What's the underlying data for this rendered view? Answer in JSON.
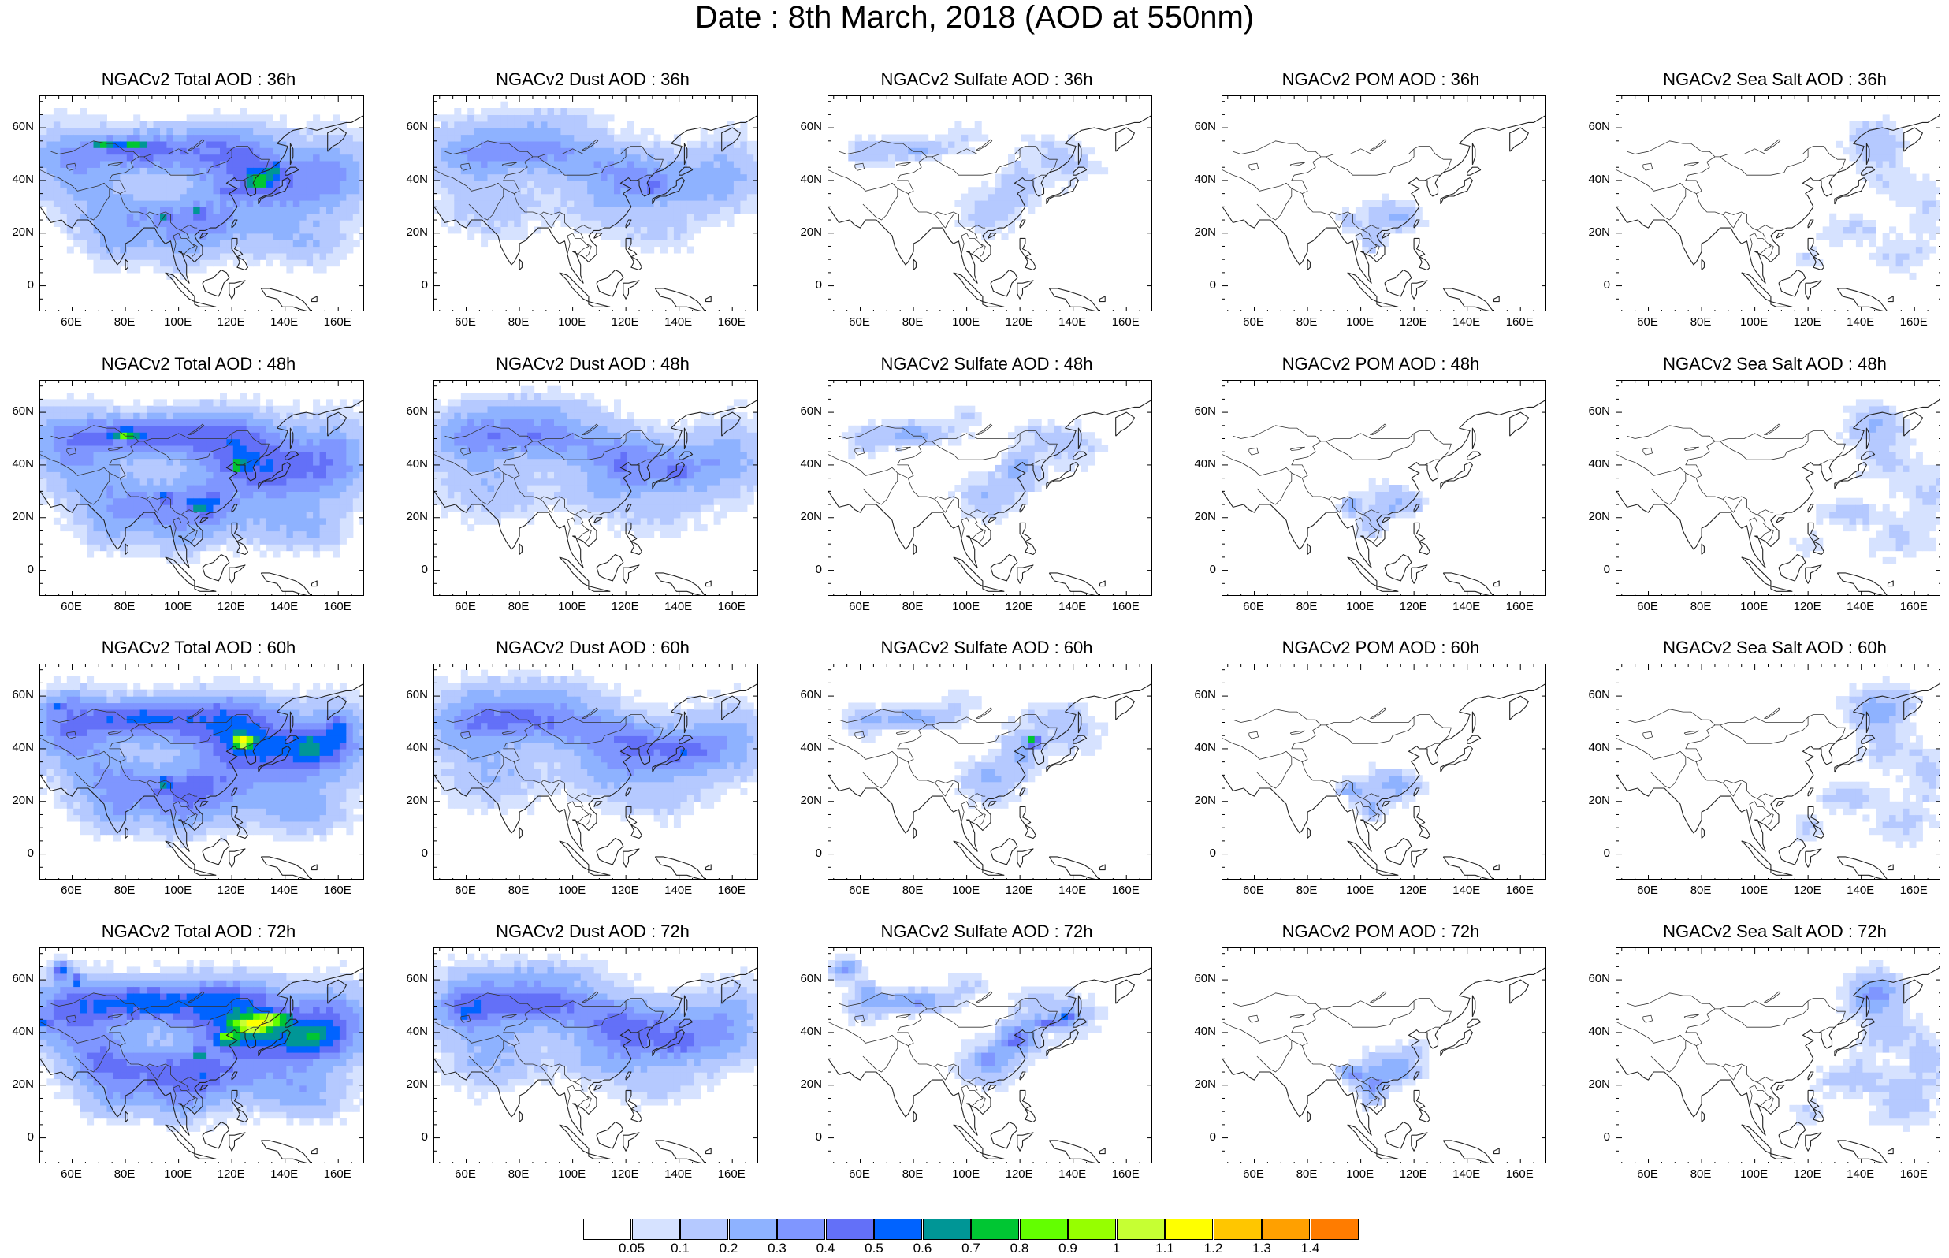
{
  "title": "Date : 8th March, 2018 (AOD at 550nm)",
  "lat_labels": [
    "60N",
    "40N",
    "20N",
    "0"
  ],
  "lon_labels": [
    "60E",
    "80E",
    "100E",
    "120E",
    "140E",
    "160E"
  ],
  "panels": [
    {
      "title": "NGACv2 Total AOD : 36h",
      "species": "total",
      "hour": 36
    },
    {
      "title": "NGACv2 Dust AOD : 36h",
      "species": "dust",
      "hour": 36
    },
    {
      "title": "NGACv2 Sulfate AOD : 36h",
      "species": "sulfate",
      "hour": 36
    },
    {
      "title": "NGACv2 POM AOD : 36h",
      "species": "pom",
      "hour": 36
    },
    {
      "title": "NGACv2 Sea Salt AOD : 36h",
      "species": "seasalt",
      "hour": 36
    },
    {
      "title": "NGACv2 Total AOD : 48h",
      "species": "total",
      "hour": 48
    },
    {
      "title": "NGACv2 Dust AOD : 48h",
      "species": "dust",
      "hour": 48
    },
    {
      "title": "NGACv2 Sulfate AOD : 48h",
      "species": "sulfate",
      "hour": 48
    },
    {
      "title": "NGACv2 POM AOD : 48h",
      "species": "pom",
      "hour": 48
    },
    {
      "title": "NGACv2 Sea Salt AOD : 48h",
      "species": "seasalt",
      "hour": 48
    },
    {
      "title": "NGACv2 Total AOD : 60h",
      "species": "total",
      "hour": 60
    },
    {
      "title": "NGACv2 Dust AOD : 60h",
      "species": "dust",
      "hour": 60
    },
    {
      "title": "NGACv2 Sulfate AOD : 60h",
      "species": "sulfate",
      "hour": 60
    },
    {
      "title": "NGACv2 POM AOD : 60h",
      "species": "pom",
      "hour": 60
    },
    {
      "title": "NGACv2 Sea Salt AOD : 60h",
      "species": "seasalt",
      "hour": 60
    },
    {
      "title": "NGACv2 Total AOD : 72h",
      "species": "total",
      "hour": 72
    },
    {
      "title": "NGACv2 Dust AOD : 72h",
      "species": "dust",
      "hour": 72
    },
    {
      "title": "NGACv2 Sulfate AOD : 72h",
      "species": "sulfate",
      "hour": 72
    },
    {
      "title": "NGACv2 POM AOD : 72h",
      "species": "pom",
      "hour": 72
    },
    {
      "title": "NGACv2 Sea Salt  AOD : 72h",
      "species": "seasalt",
      "hour": 72
    }
  ],
  "colorbar": {
    "colors": [
      "#ffffff",
      "#d6e2ff",
      "#b5c9ff",
      "#8eb2ff",
      "#7f96ff",
      "#6370f8",
      "#0063ff",
      "#009696",
      "#00c633",
      "#63ff00",
      "#96ff00",
      "#c6ff33",
      "#ffff00",
      "#ffc600",
      "#ffa000",
      "#ff7c00",
      "#ff1900"
    ],
    "labels": [
      "0.05",
      "0.1",
      "0.2",
      "0.3",
      "0.4",
      "0.5",
      "0.6",
      "0.7",
      "0.8",
      "0.9",
      "1",
      "1.1",
      "1.2",
      "1.3",
      "1.4"
    ]
  }
}
